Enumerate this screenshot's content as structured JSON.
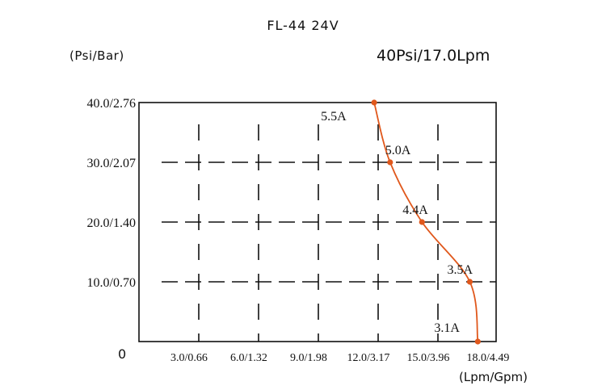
{
  "header": {
    "title": "FL-44 24V",
    "spec": "40Psi/17.0Lpm"
  },
  "chart_data": {
    "type": "line",
    "title": "FL-44 24V",
    "subtitle": "40Psi/17.0Lpm",
    "xlabel": "(Lpm/Gpm)",
    "ylabel": "(Psi/Bar)",
    "xlim": [
      0,
      18.0
    ],
    "ylim": [
      0,
      40.0
    ],
    "grid": true,
    "origin_label": "0",
    "x_ticks": [
      {
        "value": 3.0,
        "label": "3.0/0.66"
      },
      {
        "value": 6.0,
        "label": "6.0/1.32"
      },
      {
        "value": 9.0,
        "label": "9.0/1.98"
      },
      {
        "value": 12.0,
        "label": "12.0/3.17"
      },
      {
        "value": 15.0,
        "label": "15.0/3.96"
      },
      {
        "value": 18.0,
        "label": "18.0/4.49"
      }
    ],
    "y_ticks": [
      {
        "value": 10.0,
        "label": "10.0/0.70"
      },
      {
        "value": 20.0,
        "label": "20.0/1.40"
      },
      {
        "value": 30.0,
        "label": "30.0/2.07"
      },
      {
        "value": 40.0,
        "label": "40.0/2.76"
      }
    ],
    "series": [
      {
        "color": "#e0581c",
        "points": [
          {
            "x": 11.8,
            "y": 40.0,
            "label": "5.5A"
          },
          {
            "x": 12.6,
            "y": 30.0,
            "label": "5.0A"
          },
          {
            "x": 14.2,
            "y": 20.0,
            "label": "4.4A"
          },
          {
            "x": 16.6,
            "y": 10.0,
            "label": "3.5A"
          },
          {
            "x": 17.0,
            "y": 0.0,
            "label": "3.1A"
          }
        ]
      }
    ]
  }
}
